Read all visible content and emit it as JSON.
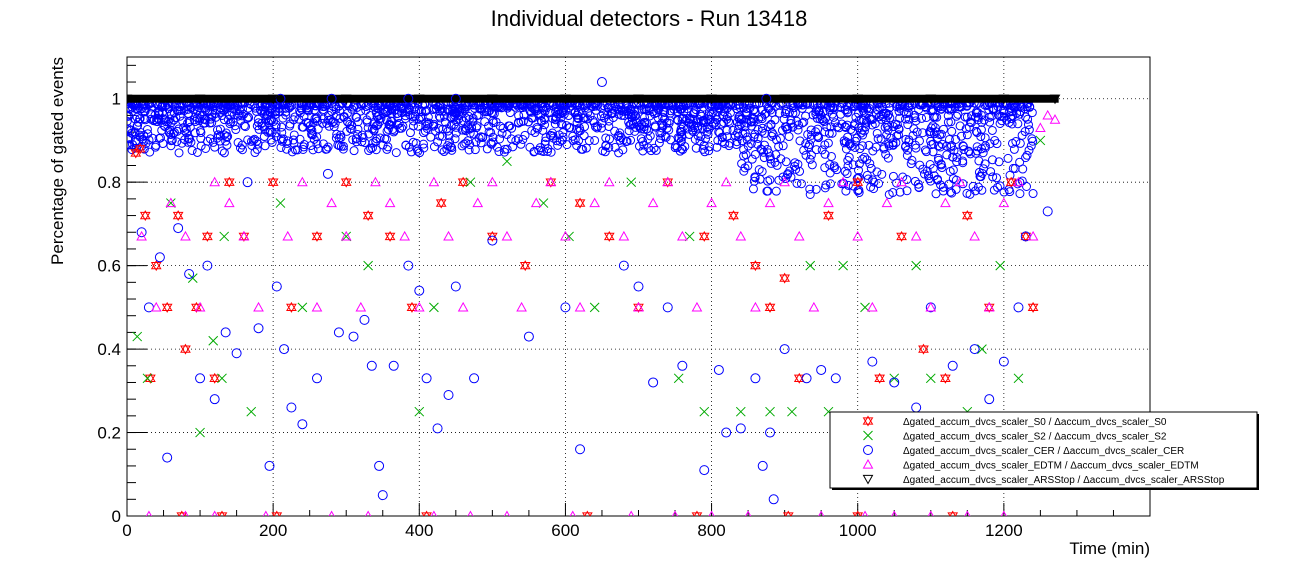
{
  "chart_data": {
    "type": "scatter",
    "title": "Individual detectors - Run 13418",
    "xlabel": "Time (min)",
    "ylabel": "Percentage of gated events",
    "xlim": [
      0,
      1400
    ],
    "ylim": [
      0,
      1.1
    ],
    "x_ticks": [
      0,
      200,
      400,
      600,
      800,
      1000,
      1200
    ],
    "y_ticks": [
      0,
      0.2,
      0.4,
      0.6,
      0.8,
      1
    ],
    "y_tick_labels": [
      "0",
      "0.2",
      "0.4",
      "0.6",
      "0.8",
      "1"
    ],
    "grid": true,
    "legend_position": "bottom-right",
    "series": [
      {
        "name": "Δgated_accum_dvcs_scaler_S0 / Δaccum_dvcs_scaler_S0",
        "color": "#ff0000",
        "marker": "open-star",
        "points": [
          [
            12,
            0.87
          ],
          [
            18,
            0.88
          ],
          [
            25,
            0.72
          ],
          [
            32,
            0.33
          ],
          [
            40,
            0.6
          ],
          [
            55,
            0.5
          ],
          [
            70,
            0.72
          ],
          [
            80,
            0.4
          ],
          [
            95,
            0.5
          ],
          [
            110,
            0.67
          ],
          [
            120,
            0.33
          ],
          [
            140,
            0.8
          ],
          [
            160,
            0.67
          ],
          [
            200,
            0.8
          ],
          [
            225,
            0.5
          ],
          [
            260,
            0.67
          ],
          [
            300,
            0.8
          ],
          [
            330,
            0.72
          ],
          [
            360,
            0.67
          ],
          [
            390,
            0.5
          ],
          [
            430,
            0.75
          ],
          [
            460,
            0.8
          ],
          [
            500,
            0.67
          ],
          [
            545,
            0.6
          ],
          [
            580,
            0.8
          ],
          [
            620,
            0.75
          ],
          [
            660,
            0.67
          ],
          [
            700,
            0.5
          ],
          [
            740,
            0.8
          ],
          [
            790,
            0.67
          ],
          [
            830,
            0.72
          ],
          [
            860,
            0.6
          ],
          [
            880,
            0.5
          ],
          [
            900,
            0.57
          ],
          [
            920,
            0.33
          ],
          [
            960,
            0.72
          ],
          [
            1000,
            0.8
          ],
          [
            1030,
            0.33
          ],
          [
            1060,
            0.67
          ],
          [
            1090,
            0.4
          ],
          [
            1120,
            0.33
          ],
          [
            1150,
            0.72
          ],
          [
            1180,
            0.5
          ],
          [
            1210,
            0.8
          ],
          [
            1230,
            0.67
          ],
          [
            75,
            0
          ],
          [
            130,
            0
          ],
          [
            205,
            0
          ],
          [
            410,
            0
          ],
          [
            630,
            0
          ],
          [
            780,
            0
          ],
          [
            905,
            0
          ],
          [
            1000,
            0
          ],
          [
            1130,
            0
          ],
          [
            1240,
            0.5
          ]
        ]
      },
      {
        "name": "Δgated_accum_dvcs_scaler_S2 / Δaccum_dvcs_scaler_S2",
        "color": "#00aa00",
        "marker": "x",
        "points": [
          [
            14,
            0.43
          ],
          [
            28,
            0.33
          ],
          [
            60,
            0.75
          ],
          [
            90,
            0.57
          ],
          [
            100,
            0.2
          ],
          [
            118,
            0.42
          ],
          [
            130,
            0.33
          ],
          [
            133,
            0.67
          ],
          [
            170,
            0.25
          ],
          [
            210,
            0.75
          ],
          [
            240,
            0.5
          ],
          [
            300,
            0.67
          ],
          [
            330,
            0.6
          ],
          [
            400,
            0.25
          ],
          [
            420,
            0.5
          ],
          [
            470,
            0.8
          ],
          [
            520,
            0.85
          ],
          [
            570,
            0.75
          ],
          [
            605,
            0.67
          ],
          [
            640,
            0.5
          ],
          [
            690,
            0.8
          ],
          [
            755,
            0.33
          ],
          [
            770,
            0.67
          ],
          [
            790,
            0.25
          ],
          [
            840,
            0.25
          ],
          [
            880,
            0.25
          ],
          [
            910,
            0.25
          ],
          [
            935,
            0.6
          ],
          [
            960,
            0.25
          ],
          [
            980,
            0.6
          ],
          [
            1010,
            0.5
          ],
          [
            1050,
            0.33
          ],
          [
            1080,
            0.6
          ],
          [
            1100,
            0.33
          ],
          [
            1150,
            0.25
          ],
          [
            1170,
            0.4
          ],
          [
            1195,
            0.6
          ],
          [
            1220,
            0.33
          ],
          [
            1250,
            0.9
          ]
        ]
      },
      {
        "name": "Δgated_accum_dvcs_scaler_CER / Δaccum_dvcs_scaler_CER",
        "color": "#0000ff",
        "marker": "open-circle",
        "points": [
          [
            12,
            0.9
          ],
          [
            20,
            0.68
          ],
          [
            30,
            0.5
          ],
          [
            45,
            0.62
          ],
          [
            55,
            0.14
          ],
          [
            70,
            0.69
          ],
          [
            85,
            0.58
          ],
          [
            100,
            0.33
          ],
          [
            110,
            0.6
          ],
          [
            120,
            0.28
          ],
          [
            135,
            0.44
          ],
          [
            150,
            0.39
          ],
          [
            165,
            0.8
          ],
          [
            180,
            0.45
          ],
          [
            195,
            0.12
          ],
          [
            205,
            0.55
          ],
          [
            215,
            0.4
          ],
          [
            225,
            0.26
          ],
          [
            240,
            0.22
          ],
          [
            260,
            0.33
          ],
          [
            275,
            0.82
          ],
          [
            290,
            0.44
          ],
          [
            310,
            0.43
          ],
          [
            325,
            0.47
          ],
          [
            335,
            0.36
          ],
          [
            345,
            0.12
          ],
          [
            350,
            0.05
          ],
          [
            365,
            0.36
          ],
          [
            385,
            0.6
          ],
          [
            400,
            0.54
          ],
          [
            410,
            0.33
          ],
          [
            425,
            0.21
          ],
          [
            440,
            0.29
          ],
          [
            450,
            0.55
          ],
          [
            475,
            0.33
          ],
          [
            500,
            0.66
          ],
          [
            550,
            0.43
          ],
          [
            600,
            0.5
          ],
          [
            620,
            0.16
          ],
          [
            650,
            1.04
          ],
          [
            680,
            0.6
          ],
          [
            700,
            0.55
          ],
          [
            720,
            0.32
          ],
          [
            740,
            0.5
          ],
          [
            760,
            0.36
          ],
          [
            790,
            0.11
          ],
          [
            810,
            0.35
          ],
          [
            820,
            0.2
          ],
          [
            840,
            0.21
          ],
          [
            860,
            0.33
          ],
          [
            870,
            0.12
          ],
          [
            880,
            0.2
          ],
          [
            885,
            0.04
          ],
          [
            900,
            0.4
          ],
          [
            930,
            0.33
          ],
          [
            950,
            0.35
          ],
          [
            970,
            0.33
          ],
          [
            990,
            0.2
          ],
          [
            1020,
            0.37
          ],
          [
            1050,
            0.32
          ],
          [
            1080,
            0.26
          ],
          [
            1100,
            0.5
          ],
          [
            1130,
            0.36
          ],
          [
            1160,
            0.4
          ],
          [
            1180,
            0.28
          ],
          [
            1200,
            0.37
          ],
          [
            1220,
            0.5
          ],
          [
            1230,
            0.67
          ],
          [
            1260,
            0.73
          ],
          [
            210,
            1.0
          ],
          [
            280,
            1.0
          ],
          [
            385,
            1.0
          ],
          [
            450,
            1.0
          ],
          [
            875,
            1.0
          ]
        ]
      },
      {
        "name": "Δgated_accum_dvcs_scaler_EDTM / Δaccum_dvcs_scaler_EDTM",
        "color": "#ff00ff",
        "marker": "open-triangle-up",
        "points": [
          [
            20,
            0.67
          ],
          [
            40,
            0.5
          ],
          [
            60,
            0.75
          ],
          [
            80,
            0.67
          ],
          [
            100,
            0.5
          ],
          [
            120,
            0.8
          ],
          [
            140,
            0.75
          ],
          [
            160,
            0.67
          ],
          [
            180,
            0.5
          ],
          [
            220,
            0.67
          ],
          [
            240,
            0.8
          ],
          [
            260,
            0.5
          ],
          [
            280,
            0.75
          ],
          [
            300,
            0.67
          ],
          [
            320,
            0.5
          ],
          [
            340,
            0.8
          ],
          [
            360,
            0.75
          ],
          [
            380,
            0.67
          ],
          [
            400,
            0.5
          ],
          [
            420,
            0.8
          ],
          [
            440,
            0.67
          ],
          [
            460,
            0.5
          ],
          [
            480,
            0.75
          ],
          [
            500,
            0.8
          ],
          [
            520,
            0.67
          ],
          [
            540,
            0.5
          ],
          [
            560,
            0.75
          ],
          [
            580,
            0.8
          ],
          [
            600,
            0.67
          ],
          [
            620,
            0.5
          ],
          [
            640,
            0.75
          ],
          [
            660,
            0.8
          ],
          [
            680,
            0.67
          ],
          [
            700,
            0.5
          ],
          [
            720,
            0.75
          ],
          [
            740,
            0.8
          ],
          [
            760,
            0.67
          ],
          [
            780,
            0.5
          ],
          [
            800,
            0.75
          ],
          [
            820,
            0.8
          ],
          [
            840,
            0.67
          ],
          [
            860,
            0.5
          ],
          [
            880,
            0.75
          ],
          [
            900,
            0.8
          ],
          [
            920,
            0.67
          ],
          [
            940,
            0.5
          ],
          [
            960,
            0.75
          ],
          [
            980,
            0.8
          ],
          [
            1000,
            0.67
          ],
          [
            1020,
            0.5
          ],
          [
            1040,
            0.75
          ],
          [
            1060,
            0.8
          ],
          [
            1080,
            0.67
          ],
          [
            1100,
            0.5
          ],
          [
            1120,
            0.75
          ],
          [
            1140,
            0.8
          ],
          [
            1160,
            0.67
          ],
          [
            1180,
            0.5
          ],
          [
            1200,
            0.75
          ],
          [
            1220,
            0.8
          ],
          [
            1240,
            0.67
          ],
          [
            30,
            0
          ],
          [
            80,
            0
          ],
          [
            120,
            0
          ],
          [
            190,
            0
          ],
          [
            280,
            0
          ],
          [
            330,
            0
          ],
          [
            420,
            0
          ],
          [
            470,
            0
          ],
          [
            520,
            0
          ],
          [
            610,
            0
          ],
          [
            690,
            0
          ],
          [
            750,
            0
          ],
          [
            800,
            0
          ],
          [
            850,
            0
          ],
          [
            950,
            0
          ],
          [
            1010,
            0
          ],
          [
            1050,
            0
          ],
          [
            1100,
            0
          ],
          [
            1150,
            0
          ],
          [
            1200,
            0
          ],
          [
            1250,
            0.93
          ],
          [
            1260,
            0.96
          ],
          [
            1270,
            0.95
          ]
        ]
      },
      {
        "name": "Δgated_accum_dvcs_scaler_ARSStop / Δaccum_dvcs_scaler_ARSStop",
        "color": "#000000",
        "marker": "open-triangle-down",
        "points": [
          [
            0,
            1.0
          ],
          [
            100,
            1.0
          ],
          [
            200,
            1.0
          ],
          [
            300,
            1.0
          ],
          [
            400,
            1.0
          ],
          [
            500,
            1.0
          ],
          [
            600,
            1.0
          ],
          [
            700,
            1.0
          ],
          [
            800,
            1.0
          ],
          [
            900,
            1.0
          ],
          [
            1000,
            1.0
          ],
          [
            1100,
            1.0
          ],
          [
            1200,
            1.0
          ],
          [
            1270,
            1.0
          ]
        ]
      }
    ]
  }
}
